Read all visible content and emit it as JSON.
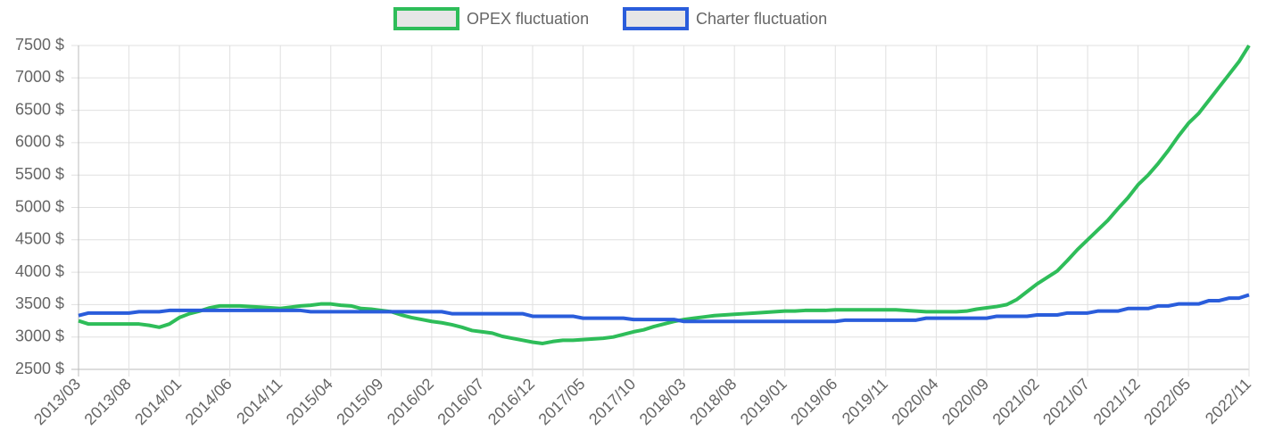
{
  "chart_data": {
    "type": "line",
    "categories": [
      "2013/03",
      null,
      null,
      null,
      null,
      "2013/08",
      null,
      null,
      null,
      null,
      "2014/01",
      null,
      null,
      null,
      null,
      "2014/06",
      null,
      null,
      null,
      null,
      "2014/11",
      null,
      null,
      null,
      null,
      "2015/04",
      null,
      null,
      null,
      null,
      "2015/09",
      null,
      null,
      null,
      null,
      "2016/02",
      null,
      null,
      null,
      null,
      "2016/07",
      null,
      null,
      null,
      null,
      "2016/12",
      null,
      null,
      null,
      null,
      "2017/05",
      null,
      null,
      null,
      null,
      "2017/10",
      null,
      null,
      null,
      null,
      "2018/03",
      null,
      null,
      null,
      null,
      "2018/08",
      null,
      null,
      null,
      null,
      "2019/01",
      null,
      null,
      null,
      null,
      "2019/06",
      null,
      null,
      null,
      null,
      "2019/11",
      null,
      null,
      null,
      null,
      "2020/04",
      null,
      null,
      null,
      null,
      "2020/09",
      null,
      null,
      null,
      null,
      "2021/02",
      null,
      null,
      null,
      null,
      "2021/07",
      null,
      null,
      null,
      null,
      "2021/12",
      null,
      null,
      null,
      null,
      "2022/05",
      null,
      null,
      null,
      null,
      null,
      "2022/11"
    ],
    "series": [
      {
        "name": "OPEX fluctuation",
        "color": "#2ebd59",
        "values": [
          3250,
          3200,
          3200,
          3200,
          3200,
          3200,
          3200,
          3180,
          3150,
          3200,
          3300,
          3360,
          3400,
          3450,
          3480,
          3480,
          3480,
          3470,
          3460,
          3450,
          3440,
          3460,
          3480,
          3490,
          3510,
          3510,
          3490,
          3480,
          3440,
          3430,
          3410,
          3390,
          3340,
          3300,
          3270,
          3240,
          3220,
          3190,
          3150,
          3100,
          3080,
          3060,
          3010,
          2980,
          2950,
          2920,
          2900,
          2930,
          2950,
          2950,
          2960,
          2970,
          2980,
          3000,
          3040,
          3080,
          3110,
          3160,
          3200,
          3240,
          3270,
          3290,
          3310,
          3330,
          3340,
          3350,
          3360,
          3370,
          3380,
          3390,
          3400,
          3400,
          3410,
          3410,
          3410,
          3420,
          3420,
          3420,
          3420,
          3420,
          3420,
          3420,
          3410,
          3400,
          3390,
          3390,
          3390,
          3390,
          3400,
          3430,
          3450,
          3470,
          3500,
          3580,
          3700,
          3820,
          3920,
          4020,
          4180,
          4350,
          4500,
          4650,
          4800,
          4980,
          5150,
          5350,
          5500,
          5680,
          5880,
          6100,
          6300,
          6450,
          6650,
          6850,
          7050,
          7250,
          7500
        ]
      },
      {
        "name": "Charter fluctuation",
        "color": "#2a5ddb",
        "values": [
          3330,
          3370,
          3370,
          3370,
          3370,
          3370,
          3390,
          3390,
          3390,
          3410,
          3410,
          3410,
          3410,
          3410,
          3410,
          3410,
          3410,
          3410,
          3410,
          3410,
          3410,
          3410,
          3410,
          3390,
          3390,
          3390,
          3390,
          3390,
          3390,
          3390,
          3390,
          3390,
          3390,
          3390,
          3390,
          3390,
          3390,
          3360,
          3360,
          3360,
          3360,
          3360,
          3360,
          3360,
          3360,
          3320,
          3320,
          3320,
          3320,
          3320,
          3290,
          3290,
          3290,
          3290,
          3290,
          3270,
          3270,
          3270,
          3270,
          3270,
          3240,
          3240,
          3240,
          3240,
          3240,
          3240,
          3240,
          3240,
          3240,
          3240,
          3240,
          3240,
          3240,
          3240,
          3240,
          3240,
          3260,
          3260,
          3260,
          3260,
          3260,
          3260,
          3260,
          3260,
          3290,
          3290,
          3290,
          3290,
          3290,
          3290,
          3290,
          3320,
          3320,
          3320,
          3320,
          3340,
          3340,
          3340,
          3370,
          3370,
          3370,
          3400,
          3400,
          3400,
          3440,
          3440,
          3440,
          3480,
          3480,
          3510,
          3510,
          3510,
          3560,
          3560,
          3600,
          3600,
          3650
        ]
      }
    ],
    "ylim": [
      2500,
      7500
    ],
    "yticks": [
      {
        "value": 2500,
        "label": "2500 $"
      },
      {
        "value": 3000,
        "label": "3000 $"
      },
      {
        "value": 3500,
        "label": "3500 $"
      },
      {
        "value": 4000,
        "label": "4000 $"
      },
      {
        "value": 4500,
        "label": "4500 $"
      },
      {
        "value": 5000,
        "label": "5000 $"
      },
      {
        "value": 5500,
        "label": "5500 $"
      },
      {
        "value": 6000,
        "label": "6000 $"
      },
      {
        "value": 6500,
        "label": "6500 $"
      },
      {
        "value": 7000,
        "label": "7000 $"
      },
      {
        "value": 7500,
        "label": "7500 $"
      }
    ],
    "grid": true,
    "legend": "top"
  }
}
